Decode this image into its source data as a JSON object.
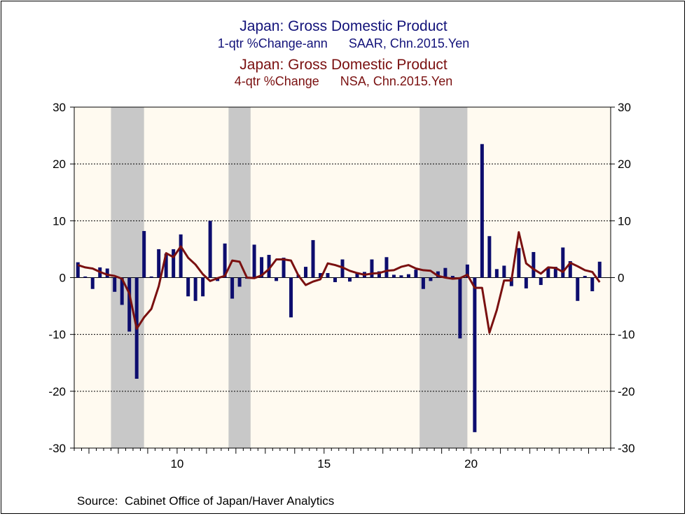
{
  "titles": {
    "series1_title": "Japan: Gross Domestic Product",
    "series1_subtitle": "1-qtr %Change-ann      SAAR, Chn.2015.Yen",
    "series2_title": "Japan: Gross Domestic Product",
    "series2_subtitle": "4-qtr %Change      NSA, Chn.2015.Yen"
  },
  "source": "Source:  Cabinet Office of Japan/Haver Analytics",
  "colors": {
    "bar": "#0d0d6e",
    "line": "#7a1010",
    "plot_background": "#fffaf0",
    "recession": "#c8c8c8"
  },
  "chart_data": {
    "type": "bar",
    "grid": "horizontal dashed",
    "ylim": [
      -30,
      30
    ],
    "y_ticks": [
      "30",
      "20",
      "10",
      "0",
      "-10",
      "-20",
      "-30"
    ],
    "x_range": [
      2006.5,
      2024.75
    ],
    "x_ticks": [
      {
        "value": 2010,
        "label": "10"
      },
      {
        "value": 2015,
        "label": "15"
      },
      {
        "value": 2020,
        "label": "20"
      }
    ],
    "recessions": [
      [
        2007.75,
        2008.875
      ],
      [
        2011.75,
        2012.5
      ],
      [
        2018.25,
        2019.875
      ]
    ],
    "series": [
      {
        "type": "bar",
        "axis": "left",
        "x": [
          2006.625,
          2006.875,
          2007.125,
          2007.375,
          2007.625,
          2007.875,
          2008.125,
          2008.375,
          2008.625,
          2008.875,
          2009.125,
          2009.375,
          2009.625,
          2009.875,
          2010.125,
          2010.375,
          2010.625,
          2010.875,
          2011.125,
          2011.375,
          2011.625,
          2011.875,
          2012.125,
          2012.375,
          2012.625,
          2012.875,
          2013.125,
          2013.375,
          2013.625,
          2013.875,
          2014.125,
          2014.375,
          2014.625,
          2014.875,
          2015.125,
          2015.375,
          2015.625,
          2015.875,
          2016.125,
          2016.375,
          2016.625,
          2016.875,
          2017.125,
          2017.375,
          2017.625,
          2017.875,
          2018.125,
          2018.375,
          2018.625,
          2018.875,
          2019.125,
          2019.375,
          2019.625,
          2019.875,
          2020.125,
          2020.375,
          2020.625,
          2020.875,
          2021.125,
          2021.375,
          2021.625,
          2021.875,
          2022.125,
          2022.375,
          2022.625,
          2022.875,
          2023.125,
          2023.375,
          2023.625,
          2023.875,
          2024.125,
          2024.375
        ],
        "values": [
          2.7,
          0.2,
          -2.0,
          1.8,
          1.6,
          -2.5,
          -4.8,
          -9.5,
          -17.8,
          8.2,
          0.2,
          5.0,
          4.2,
          5.0,
          7.6,
          -3.3,
          -4.1,
          -3.3,
          10.0,
          -0.6,
          6.0,
          -3.7,
          -1.6,
          -0.2,
          5.8,
          3.6,
          4.0,
          -0.6,
          3.5,
          -7.0,
          0.5,
          1.9,
          6.6,
          0.8,
          0.8,
          -0.8,
          3.2,
          -0.7,
          0.9,
          1.0,
          3.2,
          1.1,
          3.6,
          0.5,
          0.4,
          0.6,
          1.4,
          -2.0,
          -0.6,
          1.1,
          1.7,
          0.3,
          -10.7,
          2.3,
          -27.2,
          23.5,
          7.3,
          1.5,
          2.1,
          -1.5,
          5.2,
          -1.9,
          4.5,
          -1.3,
          1.8,
          1.9,
          5.3,
          2.9,
          -4.1,
          0.3,
          -2.4,
          2.8
        ]
      },
      {
        "type": "line",
        "axis": "right",
        "x": [
          2006.625,
          2006.875,
          2007.125,
          2007.375,
          2007.625,
          2007.875,
          2008.125,
          2008.375,
          2008.625,
          2008.875,
          2009.125,
          2009.375,
          2009.625,
          2009.875,
          2010.125,
          2010.375,
          2010.625,
          2010.875,
          2011.125,
          2011.375,
          2011.625,
          2011.875,
          2012.125,
          2012.375,
          2012.625,
          2012.875,
          2013.125,
          2013.375,
          2013.625,
          2013.875,
          2014.125,
          2014.375,
          2014.625,
          2014.875,
          2015.125,
          2015.375,
          2015.625,
          2015.875,
          2016.125,
          2016.375,
          2016.625,
          2016.875,
          2017.125,
          2017.375,
          2017.625,
          2017.875,
          2018.125,
          2018.375,
          2018.625,
          2018.875,
          2019.125,
          2019.375,
          2019.625,
          2019.875,
          2020.125,
          2020.375,
          2020.625,
          2020.875,
          2021.125,
          2021.375,
          2021.625,
          2021.875,
          2022.125,
          2022.375,
          2022.625,
          2022.875,
          2023.125,
          2023.375,
          2023.625,
          2023.875,
          2024.125,
          2024.375
        ],
        "values": [
          2.2,
          1.8,
          1.6,
          1.0,
          0.5,
          0.3,
          -0.2,
          -2.8,
          -9.0,
          -7.0,
          -5.5,
          -1.5,
          4.3,
          3.6,
          5.5,
          3.5,
          2.3,
          0.6,
          -0.6,
          -0.1,
          0.3,
          3.0,
          2.8,
          0.0,
          -0.1,
          0.4,
          1.5,
          3.2,
          3.2,
          3.0,
          0.4,
          -1.3,
          -0.7,
          -0.3,
          2.5,
          2.2,
          1.8,
          1.2,
          0.8,
          0.5,
          0.7,
          0.8,
          1.2,
          1.3,
          1.9,
          2.2,
          1.6,
          1.3,
          1.2,
          0.3,
          0.0,
          -0.2,
          -0.1,
          0.5,
          -1.8,
          -1.8,
          -9.7,
          -5.7,
          -0.5,
          -0.5,
          8.0,
          2.5,
          1.5,
          0.7,
          1.8,
          1.7,
          1.0,
          2.6,
          2.0,
          1.3,
          1.0,
          -0.8
        ]
      }
    ]
  }
}
